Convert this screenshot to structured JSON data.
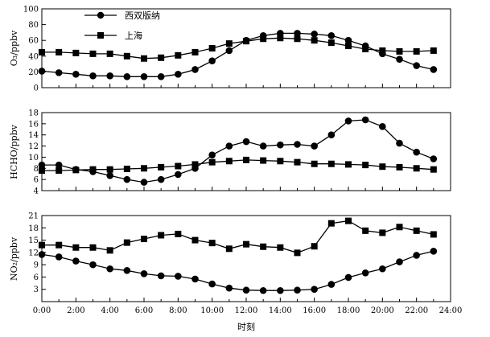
{
  "chart_data": [
    {
      "type": "line",
      "ylabel": "O₃/ppbv",
      "ylim": [
        0,
        100
      ],
      "yticks": [
        0,
        20,
        40,
        60,
        80,
        100
      ],
      "legend": "top-left",
      "x": [
        0,
        1,
        2,
        3,
        4,
        5,
        6,
        7,
        8,
        9,
        10,
        11,
        12,
        13,
        14,
        15,
        16,
        17,
        18,
        19,
        20,
        21,
        22,
        23
      ],
      "series": [
        {
          "name": "西双版纳",
          "marker": "circle",
          "values": [
            21,
            19,
            17,
            15,
            15,
            14,
            14,
            14,
            17,
            23,
            34,
            47,
            60,
            66,
            69,
            69,
            68,
            66,
            60,
            53,
            43,
            36,
            28,
            23
          ]
        },
        {
          "name": "上海",
          "marker": "square",
          "values": [
            45,
            45,
            44,
            43,
            43,
            40,
            37,
            38,
            41,
            45,
            50,
            56,
            59,
            62,
            63,
            62,
            60,
            57,
            53,
            49,
            47,
            46,
            46,
            47
          ]
        }
      ]
    },
    {
      "type": "line",
      "ylabel": "HCHO/ppbv",
      "ylim": [
        4,
        18
      ],
      "yticks": [
        4,
        6,
        8,
        10,
        12,
        14,
        16,
        18
      ],
      "x": [
        0,
        1,
        2,
        3,
        4,
        5,
        6,
        7,
        8,
        9,
        10,
        11,
        12,
        13,
        14,
        15,
        16,
        17,
        18,
        19,
        20,
        21,
        22,
        23
      ],
      "series": [
        {
          "name": "西双版纳",
          "marker": "circle",
          "values": [
            8.6,
            8.6,
            7.8,
            7.4,
            6.7,
            6.0,
            5.5,
            6.0,
            6.9,
            8.0,
            10.4,
            12.0,
            12.8,
            12.0,
            12.2,
            12.3,
            12.0,
            14.0,
            16.5,
            16.7,
            15.5,
            12.5,
            10.9,
            9.7
          ]
        },
        {
          "name": "上海",
          "marker": "square",
          "values": [
            7.6,
            7.6,
            7.7,
            7.8,
            7.8,
            7.9,
            8.0,
            8.2,
            8.4,
            8.7,
            9.1,
            9.3,
            9.5,
            9.4,
            9.3,
            9.1,
            8.8,
            8.8,
            8.7,
            8.6,
            8.3,
            8.2,
            8.0,
            7.8
          ]
        }
      ]
    },
    {
      "type": "line",
      "ylabel": "NO₂/ppbv",
      "xlabel": "时刻",
      "ylim": [
        0,
        21
      ],
      "yticks": [
        3,
        6,
        9,
        12,
        15,
        18,
        21
      ],
      "xticks": [
        "0:00",
        "2:00",
        "4:00",
        "6:00",
        "8:00",
        "10:00",
        "12:00",
        "14:00",
        "16:00",
        "18:00",
        "20:00",
        "22:00",
        "24:00"
      ],
      "xlim": [
        0,
        24
      ],
      "x": [
        0,
        1,
        2,
        3,
        4,
        5,
        6,
        7,
        8,
        9,
        10,
        11,
        12,
        13,
        14,
        15,
        16,
        17,
        18,
        19,
        20,
        21,
        22,
        23
      ],
      "series": [
        {
          "name": "西双版纳",
          "marker": "circle",
          "values": [
            11.5,
            10.9,
            9.9,
            9.0,
            8.0,
            7.6,
            6.8,
            6.3,
            6.2,
            5.5,
            4.3,
            3.3,
            2.8,
            2.7,
            2.7,
            2.8,
            3.0,
            4.2,
            5.9,
            7.0,
            8.0,
            9.7,
            11.3,
            12.3
          ]
        },
        {
          "name": "上海",
          "marker": "square",
          "values": [
            13.8,
            13.8,
            13.2,
            13.2,
            12.5,
            14.4,
            15.3,
            16.2,
            16.5,
            15.0,
            14.3,
            12.9,
            14.0,
            13.4,
            13.2,
            11.9,
            13.5,
            19.1,
            19.7,
            17.3,
            16.8,
            18.2,
            17.3,
            16.4
          ]
        }
      ]
    }
  ]
}
